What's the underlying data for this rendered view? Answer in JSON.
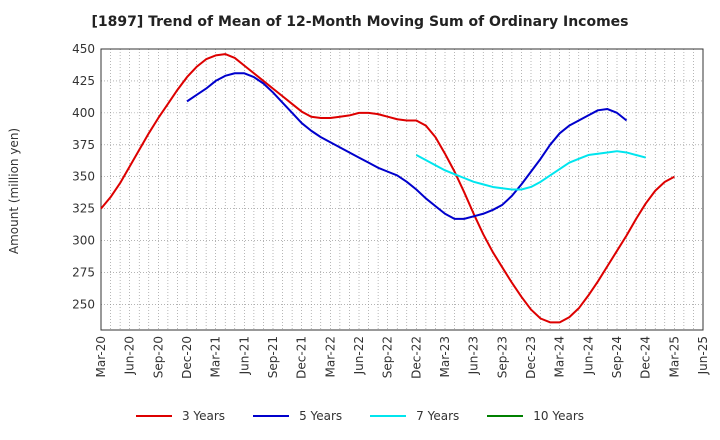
{
  "chart_data": {
    "type": "line",
    "title": "[1897]  Trend of Mean of 12-Month Moving Sum of Ordinary Incomes",
    "xlabel": "",
    "ylabel": "Amount (million yen)",
    "ylim": [
      230,
      450
    ],
    "yticks": [
      250,
      275,
      300,
      325,
      350,
      375,
      400,
      425,
      450
    ],
    "x_tick_labels": [
      "Mar-20",
      "Jun-20",
      "Sep-20",
      "Dec-20",
      "Mar-21",
      "Jun-21",
      "Sep-21",
      "Dec-21",
      "Mar-22",
      "Jun-22",
      "Sep-22",
      "Dec-22",
      "Mar-23",
      "Jun-23",
      "Sep-23",
      "Dec-23",
      "Mar-24",
      "Jun-24",
      "Sep-24",
      "Dec-24",
      "Mar-25",
      "Jun-25"
    ],
    "x_start": "2020-03",
    "series": [
      {
        "name": "3 Years",
        "color": "#dd0000",
        "start_index": 0,
        "values": [
          325,
          334,
          345,
          358,
          371,
          384,
          396,
          407,
          418,
          428,
          436,
          442,
          445,
          446,
          443,
          437,
          431,
          425,
          419,
          413,
          407,
          401,
          397,
          396,
          396,
          397,
          398,
          400,
          400,
          399,
          397,
          395,
          394,
          394,
          390,
          381,
          368,
          354,
          338,
          321,
          305,
          291,
          279,
          267,
          256,
          246,
          239,
          236,
          236,
          240,
          247,
          257,
          268,
          280,
          292,
          304,
          317,
          329,
          339,
          346,
          350
        ]
      },
      {
        "name": "5 Years",
        "color": "#0000cc",
        "start_index": 9,
        "values": [
          409,
          414,
          419,
          425,
          429,
          431,
          431,
          428,
          423,
          416,
          408,
          400,
          392,
          386,
          381,
          377,
          373,
          369,
          365,
          361,
          357,
          354,
          351,
          346,
          340,
          333,
          327,
          321,
          317,
          317,
          319,
          321,
          324,
          328,
          335,
          344,
          354,
          364,
          375,
          384,
          390,
          394,
          398,
          402,
          403,
          400,
          394
        ]
      },
      {
        "name": "7 Years",
        "color": "#00e5ee",
        "start_index": 33,
        "values": [
          367,
          363,
          359,
          355,
          352,
          349,
          346,
          344,
          342,
          341,
          340,
          340,
          342,
          346,
          351,
          356,
          361,
          364,
          367,
          368,
          369,
          370,
          369,
          367,
          365
        ]
      },
      {
        "name": "10 Years",
        "color": "#008000",
        "start_index": 0,
        "values": []
      }
    ]
  }
}
